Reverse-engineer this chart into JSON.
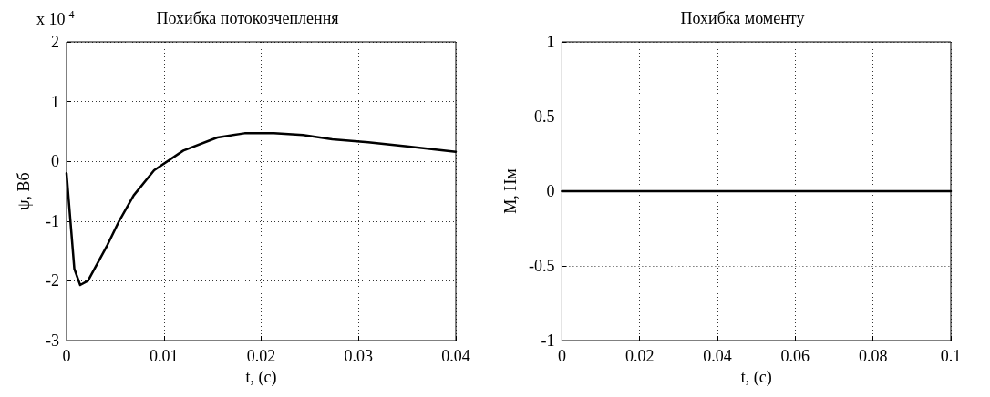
{
  "chart_data": [
    {
      "type": "line",
      "title": "Похибка потокозчеплення",
      "xlabel": "t, (c)",
      "ylabel": "ψ, Вб",
      "annotations": [
        "x 10$^{-4}$"
      ],
      "series": [
        {
          "color": "#000000",
          "x": [
            0,
            0.0008,
            0.0014,
            0.0022,
            0.0042,
            0.0054,
            0.0069,
            0.009,
            0.012,
            0.0155,
            0.0183,
            0.0213,
            0.0243,
            0.0273,
            0.031,
            0.035,
            0.04
          ],
          "values": [
            -0.2,
            -1.8,
            -2.07,
            -2.0,
            -1.4,
            -1.0,
            -0.57,
            -0.15,
            0.18,
            0.4,
            0.47,
            0.47,
            0.44,
            0.37,
            0.32,
            0.25,
            0.16
          ]
        }
      ],
      "xlim": [
        0,
        0.04
      ],
      "xticks": [
        0,
        0.01,
        0.02,
        0.03,
        0.04
      ],
      "ylim": [
        -3,
        2
      ],
      "yticks": [
        -3,
        -2,
        -1,
        0,
        1,
        2
      ],
      "grid": true,
      "marker": "none",
      "line_style": "solid"
    },
    {
      "type": "line",
      "title": "Похибка моменту",
      "xlabel": "t, (c)",
      "ylabel": "M, Нм",
      "series": [
        {
          "color": "#000000",
          "x": [
            0,
            0.1
          ],
          "values": [
            0,
            0
          ]
        }
      ],
      "xlim": [
        0,
        0.1
      ],
      "xticks": [
        0,
        0.02,
        0.04,
        0.06,
        0.08,
        0.1
      ],
      "ylim": [
        -1,
        1
      ],
      "yticks": [
        -1,
        -0.5,
        0,
        0.5,
        1
      ],
      "grid": true,
      "marker": "none",
      "line_style": "solid"
    }
  ]
}
